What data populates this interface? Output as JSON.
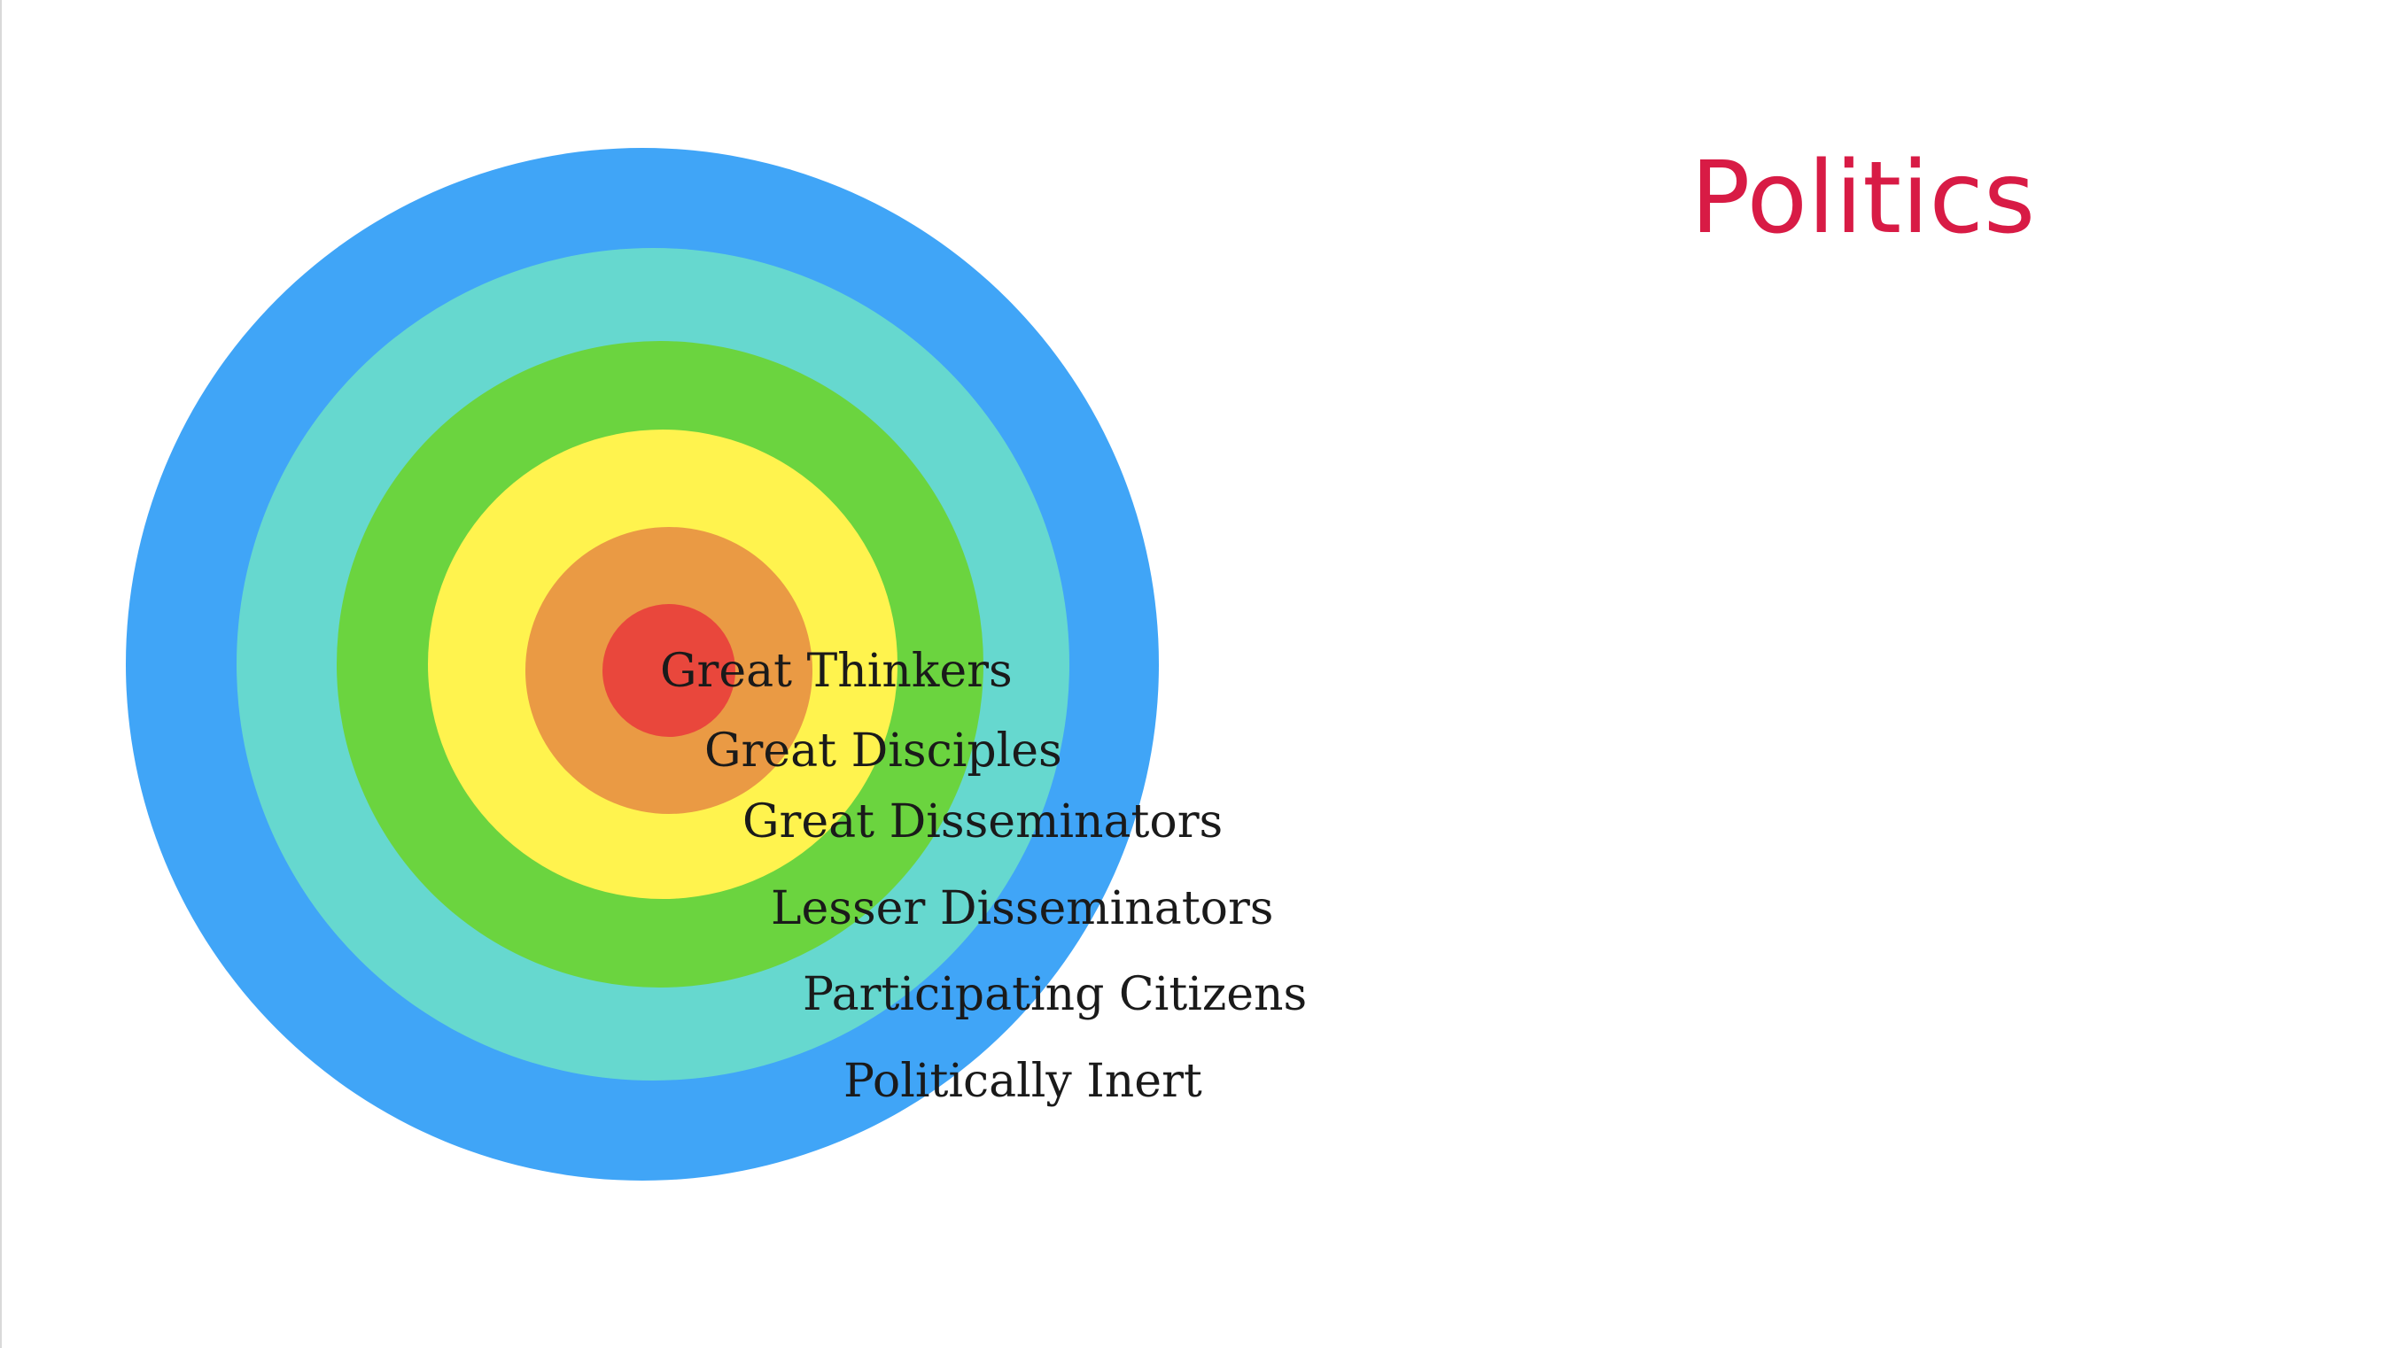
{
  "slide": {
    "title": "Politics",
    "title_color": "#d81b45"
  },
  "diagram": {
    "type": "concentric-circles",
    "rings": [
      {
        "label": "Politically Inert",
        "color": "#40a5f7"
      },
      {
        "label": "Participating Citizens",
        "color": "#66d8cf"
      },
      {
        "label": "Lesser Disseminators",
        "color": "#6bd43f"
      },
      {
        "label": "Great Disseminators",
        "color": "#fff34e"
      },
      {
        "label": "Great Disciples",
        "color": "#ea9a44"
      },
      {
        "label": "Great Thinkers",
        "color": "#e9473c"
      }
    ]
  }
}
